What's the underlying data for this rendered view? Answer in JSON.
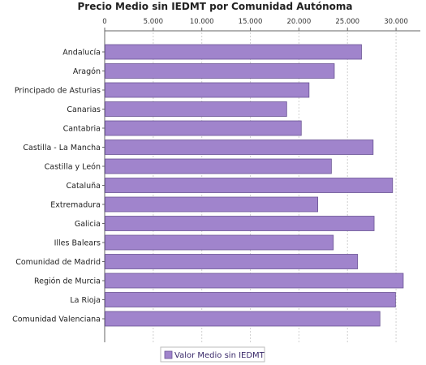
{
  "chart_data": {
    "type": "bar",
    "orientation": "horizontal",
    "title": "Precio Medio sin IEDMT por Comunidad Autónoma",
    "categories": [
      "Andalucía",
      "Aragón",
      "Principado de Asturias",
      "Canarias",
      "Cantabria",
      "Castilla - La Mancha",
      "Castilla y León",
      "Cataluña",
      "Extremadura",
      "Galicia",
      "Illes Balears",
      "Comunidad de Madrid",
      "Región de Murcia",
      "La Rioja",
      "Comunidad Valenciana"
    ],
    "series": [
      {
        "name": "Valor Medio sin IEDMT",
        "values": [
          26400,
          23600,
          21000,
          18700,
          20200,
          27600,
          23300,
          29600,
          21900,
          27700,
          23500,
          26000,
          30700,
          29900,
          28300
        ]
      }
    ],
    "xaxis": {
      "position": "top",
      "range": [
        0,
        32500
      ],
      "ticks": [
        0,
        5000,
        10000,
        15000,
        20000,
        25000,
        30000
      ],
      "tick_labels": [
        "0",
        "5.000",
        "10.000",
        "15.000",
        "20.000",
        "25.000",
        "30.000"
      ]
    },
    "xlabel": "",
    "ylabel": "",
    "grid": true,
    "legend_placement": "bottom",
    "colors": {
      "bar_fill": "#a084cc",
      "bar_stroke": "#6a5494",
      "grid": "#d0d0d0",
      "axis": "#666666"
    }
  }
}
